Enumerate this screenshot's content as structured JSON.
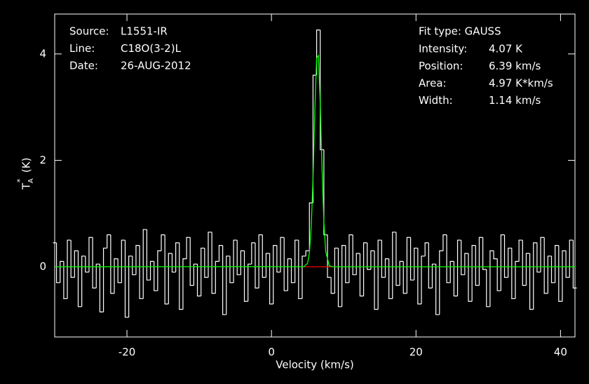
{
  "chart_data": {
    "type": "line",
    "xlabel": "Velocity (km/s)",
    "ylabel": {
      "symbol": "T",
      "subscript": "A",
      "superscript": "*",
      "unit": "(K)"
    },
    "info_left": [
      {
        "label": "Source:",
        "value": "L1551-IR"
      },
      {
        "label": "Line:",
        "value": "C18O(3-2)L"
      },
      {
        "label": "Date:",
        "value": "26-AUG-2012"
      }
    ],
    "fit_title": "Fit type: GAUSS",
    "info_right": [
      {
        "label": "Intensity:",
        "value": "4.07 K"
      },
      {
        "label": "Position:",
        "value": "6.39 km/s"
      },
      {
        "label": "Area:",
        "value": "4.97 K*km/s"
      },
      {
        "label": "Width:",
        "value": "1.14 km/s"
      }
    ],
    "xlim": [
      -30,
      42
    ],
    "ylim": [
      -1.32,
      4.75
    ],
    "xticks": [
      -20,
      0,
      20,
      40
    ],
    "yticks": [
      0,
      2,
      4
    ],
    "x": [
      -30,
      -29.5,
      -29,
      -28.5,
      -28,
      -27.5,
      -27,
      -26.5,
      -26,
      -25.5,
      -25,
      -24.5,
      -24,
      -23.5,
      -23,
      -22.5,
      -22,
      -21.5,
      -21,
      -20.5,
      -20,
      -19.5,
      -19,
      -18.5,
      -18,
      -17.5,
      -17,
      -16.5,
      -16,
      -15.5,
      -15,
      -14.5,
      -14,
      -13.5,
      -13,
      -12.5,
      -12,
      -11.5,
      -11,
      -10.5,
      -10,
      -9.5,
      -9,
      -8.5,
      -8,
      -7.5,
      -7,
      -6.5,
      -6,
      -5.5,
      -5,
      -4.5,
      -4,
      -3.5,
      -3,
      -2.5,
      -2,
      -1.5,
      -1,
      -0.5,
      0,
      0.5,
      1,
      1.5,
      2,
      2.5,
      3,
      3.5,
      4,
      4.5,
      5,
      5.5,
      6,
      6.5,
      7,
      7.5,
      8,
      8.5,
      9,
      9.5,
      10,
      10.5,
      11,
      11.5,
      12,
      12.5,
      13,
      13.5,
      14,
      14.5,
      15,
      15.5,
      16,
      16.5,
      17,
      17.5,
      18,
      18.5,
      19,
      19.5,
      20,
      20.5,
      21,
      21.5,
      22,
      22.5,
      23,
      23.5,
      24,
      24.5,
      25,
      25.5,
      26,
      26.5,
      27,
      27.5,
      28,
      28.5,
      29,
      29.5,
      30,
      30.5,
      31,
      31.5,
      32,
      32.5,
      33,
      33.5,
      34,
      34.5,
      35,
      35.5,
      36,
      36.5,
      37,
      37.5,
      38,
      38.5,
      39,
      39.5,
      40,
      40.5,
      41,
      41.5,
      42
    ],
    "series": [
      {
        "color": "#ffffff",
        "step": true,
        "values": [
          0.45,
          -0.3,
          0.1,
          -0.6,
          0.5,
          -0.2,
          0.3,
          -0.75,
          0.2,
          -0.1,
          0.55,
          -0.4,
          0.05,
          -0.85,
          0.35,
          0.6,
          -0.5,
          0.15,
          -0.3,
          0.5,
          -0.95,
          0.2,
          -0.15,
          0.4,
          -0.6,
          0.7,
          -0.25,
          0.1,
          -0.45,
          0.3,
          0.6,
          -0.7,
          0.25,
          -0.1,
          0.45,
          -0.8,
          0.15,
          0.55,
          -0.35,
          0.05,
          -0.55,
          0.35,
          -0.2,
          0.65,
          -0.5,
          0.1,
          0.4,
          -0.9,
          0.2,
          -0.3,
          0.5,
          -0.15,
          0.3,
          -0.65,
          0.05,
          0.45,
          -0.4,
          0.6,
          -0.2,
          0.25,
          -0.7,
          0.4,
          -0.1,
          0.55,
          -0.45,
          0.15,
          -0.3,
          0.5,
          -0.6,
          0.2,
          0.3,
          1.2,
          3.6,
          4.45,
          2.2,
          0.6,
          -0.2,
          -0.5,
          0.35,
          -0.75,
          0.4,
          -0.3,
          0.6,
          -0.15,
          0.25,
          -0.55,
          0.45,
          -0.05,
          0.3,
          -0.8,
          0.5,
          -0.2,
          0.15,
          -0.6,
          0.65,
          -0.35,
          0.1,
          -0.5,
          0.55,
          -0.25,
          0.35,
          -0.7,
          0.2,
          0.45,
          -0.4,
          0.05,
          -0.9,
          0.3,
          0.6,
          -0.3,
          0.1,
          -0.55,
          0.5,
          -0.15,
          0.25,
          -0.65,
          0.4,
          -0.35,
          0.55,
          -0.05,
          -0.75,
          0.3,
          0.15,
          -0.45,
          0.6,
          -0.2,
          0.35,
          -0.6,
          0.1,
          0.5,
          -0.35,
          0.25,
          -0.8,
          0.45,
          -0.1,
          0.55,
          -0.5,
          0.2,
          -0.3,
          0.4,
          -0.65,
          0.3,
          -0.2,
          0.5,
          -0.4
        ]
      },
      {
        "color": "#ff0000",
        "x": [
          4.5,
          8.5
        ],
        "values": [
          0,
          0
        ]
      },
      {
        "color": "#00ff00",
        "x": [
          -30,
          4.5,
          5,
          5.25,
          5.5,
          5.75,
          6,
          6.25,
          6.5,
          6.75,
          7,
          7.25,
          7.5,
          8,
          8.5,
          42
        ],
        "values": [
          0,
          0.002,
          0.066,
          0.26,
          0.75,
          1.64,
          2.94,
          3.92,
          3.97,
          3.06,
          1.84,
          0.85,
          0.29,
          0.017,
          0,
          0
        ]
      }
    ]
  }
}
